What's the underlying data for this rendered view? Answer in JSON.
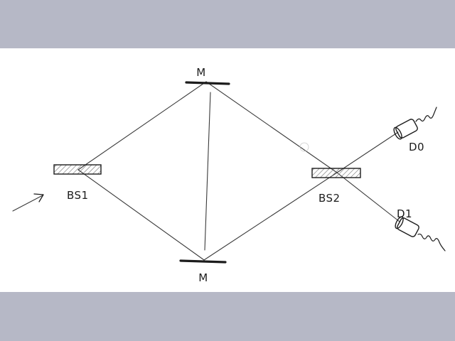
{
  "labels": {
    "mirror_top": "M",
    "mirror_bottom": "M",
    "beam_splitter_1": "BS1",
    "beam_splitter_2": "BS2",
    "detector_0": "D0",
    "detector_1": "D1"
  },
  "colors": {
    "frame": "#b6b8c6",
    "paper": "#ffffff",
    "ink": "#1c1c1c",
    "hatch": "#6a6a6a"
  }
}
